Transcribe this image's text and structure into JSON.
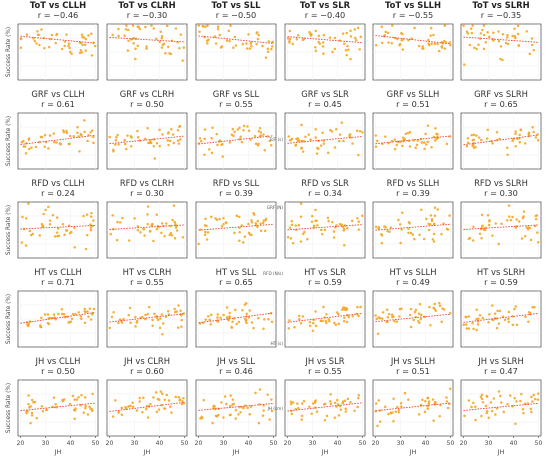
{
  "chart_data": {
    "type": "scatter",
    "row_variables": [
      "ToT",
      "GRF",
      "RFD",
      "HT",
      "JH"
    ],
    "column_variables": [
      "CLLH",
      "CLRH",
      "SLL",
      "SLR",
      "SLLH",
      "SLRH"
    ],
    "ylabel": "Success Rate (%)",
    "xlabel": "JH",
    "xticks": [
      20,
      30,
      40,
      50
    ],
    "xlim": [
      19,
      51
    ],
    "ylim": [
      0,
      100
    ],
    "trendline": "dashed red",
    "marker_color": "#f5a623",
    "line_color": "#e8483b",
    "panels": [
      {
        "title": "ToT vs CLLH",
        "r_label": "r = −0.46",
        "r": -0.46,
        "bold": true
      },
      {
        "title": "ToT vs CLRH",
        "r_label": "r = −0.30",
        "r": -0.3,
        "bold": true
      },
      {
        "title": "ToT vs SLL",
        "r_label": "r = −0.50",
        "r": -0.5,
        "bold": true
      },
      {
        "title": "ToT vs SLR",
        "r_label": "r = −0.40",
        "r": -0.4,
        "bold": true
      },
      {
        "title": "ToT vs SLLH",
        "r_label": "r = −0.55",
        "r": -0.55,
        "bold": true
      },
      {
        "title": "ToT vs SLRH",
        "r_label": "r = −0.35",
        "r": -0.35,
        "bold": true
      },
      {
        "title": "GRF vs CLLH",
        "r_label": "r = 0.61",
        "r": 0.61,
        "bold": false
      },
      {
        "title": "GRF vs CLRH",
        "r_label": "r = 0.50",
        "r": 0.5,
        "bold": false
      },
      {
        "title": "GRF vs SLL",
        "r_label": "r = 0.55",
        "r": 0.55,
        "bold": false
      },
      {
        "title": "GRF vs SLR",
        "r_label": "r = 0.45",
        "r": 0.45,
        "bold": false
      },
      {
        "title": "GRF vs SLLH",
        "r_label": "r = 0.51",
        "r": 0.51,
        "bold": false
      },
      {
        "title": "GRF vs SLRH",
        "r_label": "r = 0.65",
        "r": 0.65,
        "bold": false
      },
      {
        "title": "RFD vs CLLH",
        "r_label": "r = 0.24",
        "r": 0.24,
        "bold": false
      },
      {
        "title": "RFD vs CLRH",
        "r_label": "r = 0.30",
        "r": 0.3,
        "bold": false
      },
      {
        "title": "RFD vs SLL",
        "r_label": "r = 0.39",
        "r": 0.39,
        "bold": false
      },
      {
        "title": "RFD vs SLR",
        "r_label": "r = 0.34",
        "r": 0.34,
        "bold": false
      },
      {
        "title": "RFD vs SLLH",
        "r_label": "r = 0.39",
        "r": 0.39,
        "bold": false
      },
      {
        "title": "RFD vs SLRH",
        "r_label": "r = 0.30",
        "r": 0.3,
        "bold": false
      },
      {
        "title": "HT vs CLLH",
        "r_label": "r = 0.71",
        "r": 0.71,
        "bold": false
      },
      {
        "title": "HT vs CLRH",
        "r_label": "r = 0.55",
        "r": 0.55,
        "bold": false
      },
      {
        "title": "HT vs SLL",
        "r_label": "r = 0.65",
        "r": 0.65,
        "bold": false
      },
      {
        "title": "HT vs SLR",
        "r_label": "r = 0.59",
        "r": 0.59,
        "bold": false
      },
      {
        "title": "HT vs SLLH",
        "r_label": "r = 0.49",
        "r": 0.49,
        "bold": false
      },
      {
        "title": "HT vs SLRH",
        "r_label": "r = 0.59",
        "r": 0.59,
        "bold": false
      },
      {
        "title": "JH vs CLLH",
        "r_label": "r = 0.50",
        "r": 0.5,
        "bold": false
      },
      {
        "title": "JH vs CLRH",
        "r_label": "r = 0.60",
        "r": 0.6,
        "bold": false
      },
      {
        "title": "JH vs SLL",
        "r_label": "r = 0.46",
        "r": 0.46,
        "bold": false
      },
      {
        "title": "JH vs SLR",
        "r_label": "r = 0.55",
        "r": 0.55,
        "bold": false
      },
      {
        "title": "JH vs SLLH",
        "r_label": "r = 0.51",
        "r": 0.51,
        "bold": false
      },
      {
        "title": "JH vs SLRH",
        "r_label": "r = 0.47",
        "r": 0.47,
        "bold": false
      }
    ],
    "side_labels": [
      "ToT (s)",
      "GRF (N)",
      "RFD (N/s)",
      "HT (s)",
      "JH (cm)"
    ]
  }
}
